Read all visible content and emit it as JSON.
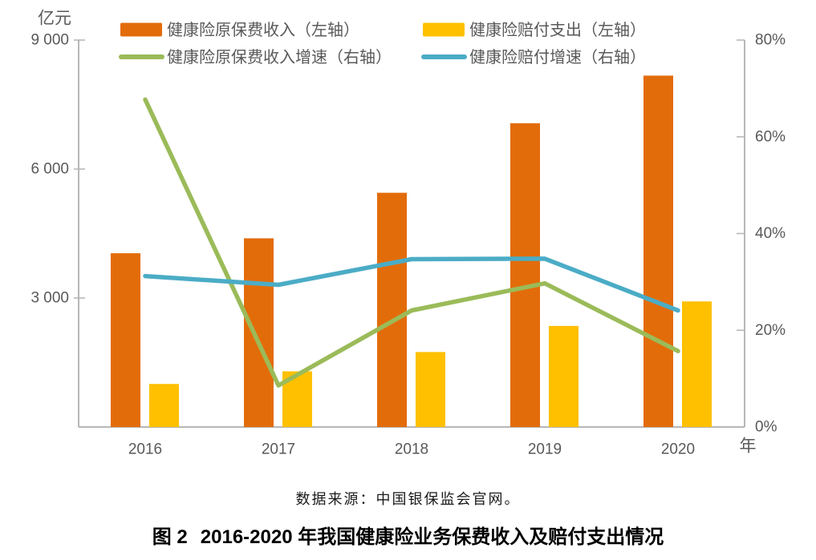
{
  "figure": {
    "source_text": "数据来源：中国银保监会官网。",
    "caption_prefix": "图 2",
    "caption_title": "2016-2020 年我国健康险业务保费收入及赔付支出情况"
  },
  "chart_data": {
    "type": "bar",
    "subtype": "combo bar+line, dual axis",
    "categories": [
      "2016",
      "2017",
      "2018",
      "2019",
      "2020"
    ],
    "x_axis_label": "年",
    "left_axis": {
      "unit_label": "亿元",
      "min": 0,
      "max": 9000,
      "ticks": [
        {
          "label": "9 000",
          "value": 9000
        },
        {
          "label": "6 000",
          "value": 6000
        },
        {
          "label": "3 000",
          "value": 3000
        }
      ]
    },
    "right_axis": {
      "min": 0,
      "max": 80,
      "ticks": [
        {
          "label": "80%",
          "value": 80
        },
        {
          "label": "60%",
          "value": 60
        },
        {
          "label": "40%",
          "value": 40
        },
        {
          "label": "20%",
          "value": 20
        },
        {
          "label": "0%",
          "value": 0
        }
      ]
    },
    "series": [
      {
        "id": "premium-income",
        "name": "健康险原保费收入（左轴）",
        "kind": "bar",
        "axis": "left",
        "color": "#E36C0A",
        "values": [
          4042,
          4389,
          5448,
          7066,
          8173
        ]
      },
      {
        "id": "claims-payout",
        "name": "健康险赔付支出（左轴）",
        "kind": "bar",
        "axis": "left",
        "color": "#FFC000",
        "values": [
          1001,
          1295,
          1744,
          2351,
          2921
        ]
      },
      {
        "id": "premium-income-growth",
        "name": "健康险原保费收入增速（右轴）",
        "kind": "line",
        "axis": "right",
        "color": "#9BBB59",
        "values": [
          67.7,
          8.6,
          24.1,
          29.7,
          15.7
        ]
      },
      {
        "id": "claims-payout-growth",
        "name": "健康险赔付增速（右轴）",
        "kind": "line",
        "axis": "right",
        "color": "#4BACC6",
        "values": [
          31.2,
          29.4,
          34.7,
          34.8,
          24.1
        ]
      }
    ],
    "legend_position": "top",
    "grid": false,
    "style_colors": {
      "axis_line": "#B7B7B7",
      "tick_label": "#595959",
      "legend_text": "#595959"
    }
  }
}
